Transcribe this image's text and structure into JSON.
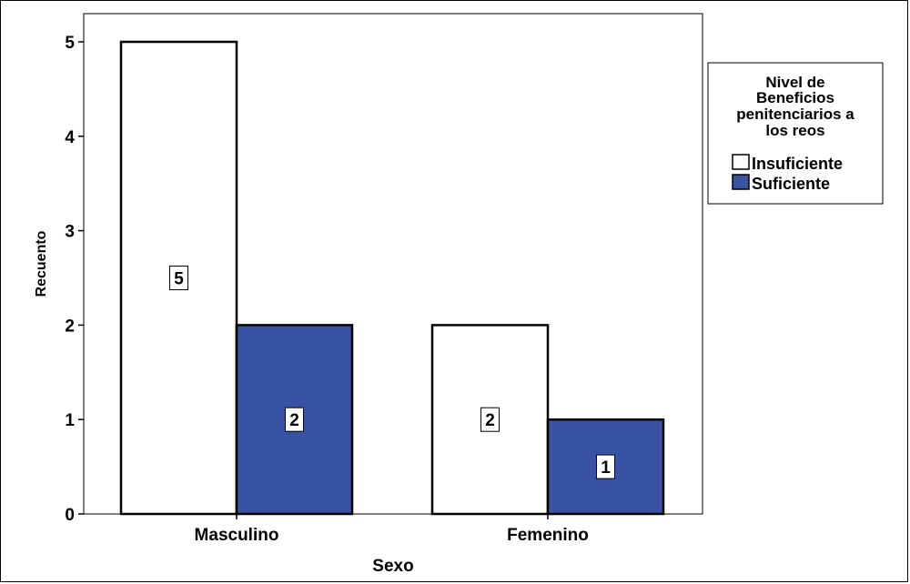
{
  "chart_data": {
    "type": "bar",
    "xlabel": "Sexo",
    "ylabel": "Recuento",
    "categories": [
      "Masculino",
      "Femenino"
    ],
    "yticks": [
      0,
      1,
      2,
      3,
      4,
      5
    ],
    "ylim": [
      0,
      5
    ],
    "grid": false,
    "legend_placement": "right",
    "legend_title": [
      "Nivel de",
      "Beneficios",
      "penitenciarios a",
      "los reos"
    ],
    "series": [
      {
        "name": "Insuficiente",
        "color": "#ffffff",
        "values": [
          5,
          2
        ]
      },
      {
        "name": "Suficiente",
        "color": "#3953a4",
        "values": [
          2,
          1
        ]
      }
    ],
    "data_labels": [
      [
        "5",
        "2"
      ],
      [
        "2",
        "1"
      ]
    ]
  }
}
